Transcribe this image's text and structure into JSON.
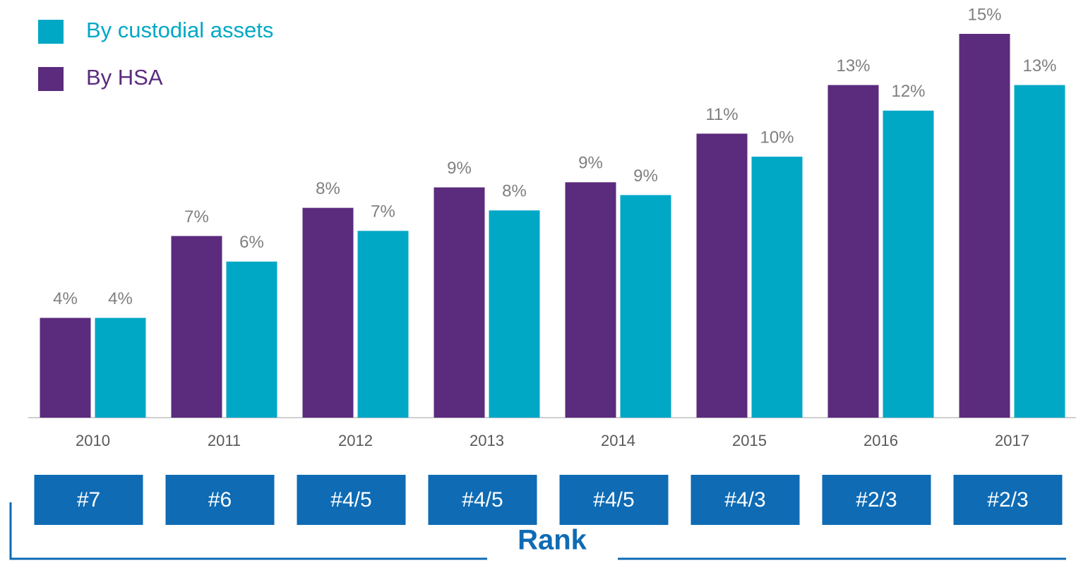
{
  "chart_data": {
    "type": "bar",
    "categories": [
      "2010",
      "2011",
      "2012",
      "2013",
      "2014",
      "2015",
      "2016",
      "2017"
    ],
    "series": [
      {
        "name": "By HSA",
        "color": "#5b2b7e",
        "values": [
          3.9,
          7.1,
          8.2,
          9.0,
          9.2,
          11.1,
          13.0,
          15.0
        ],
        "value_labels": [
          "4%",
          "7%",
          "8%",
          "9%",
          "9%",
          "11%",
          "13%",
          "15%"
        ]
      },
      {
        "name": "By custodial assets",
        "color": "#00a8c6",
        "values": [
          3.9,
          6.1,
          7.3,
          8.1,
          8.7,
          10.2,
          12.0,
          13.0
        ],
        "value_labels": [
          "4%",
          "6%",
          "7%",
          "8%",
          "9%",
          "10%",
          "12%",
          "13%"
        ]
      }
    ],
    "ylim": [
      0,
      15
    ],
    "rank_labels": [
      "#7",
      "#6",
      "#4/5",
      "#4/5",
      "#4/5",
      "#4/3",
      "#2/3",
      "#2/3"
    ],
    "rank_title": "Rank",
    "rank_color": "#0e6bb4"
  }
}
